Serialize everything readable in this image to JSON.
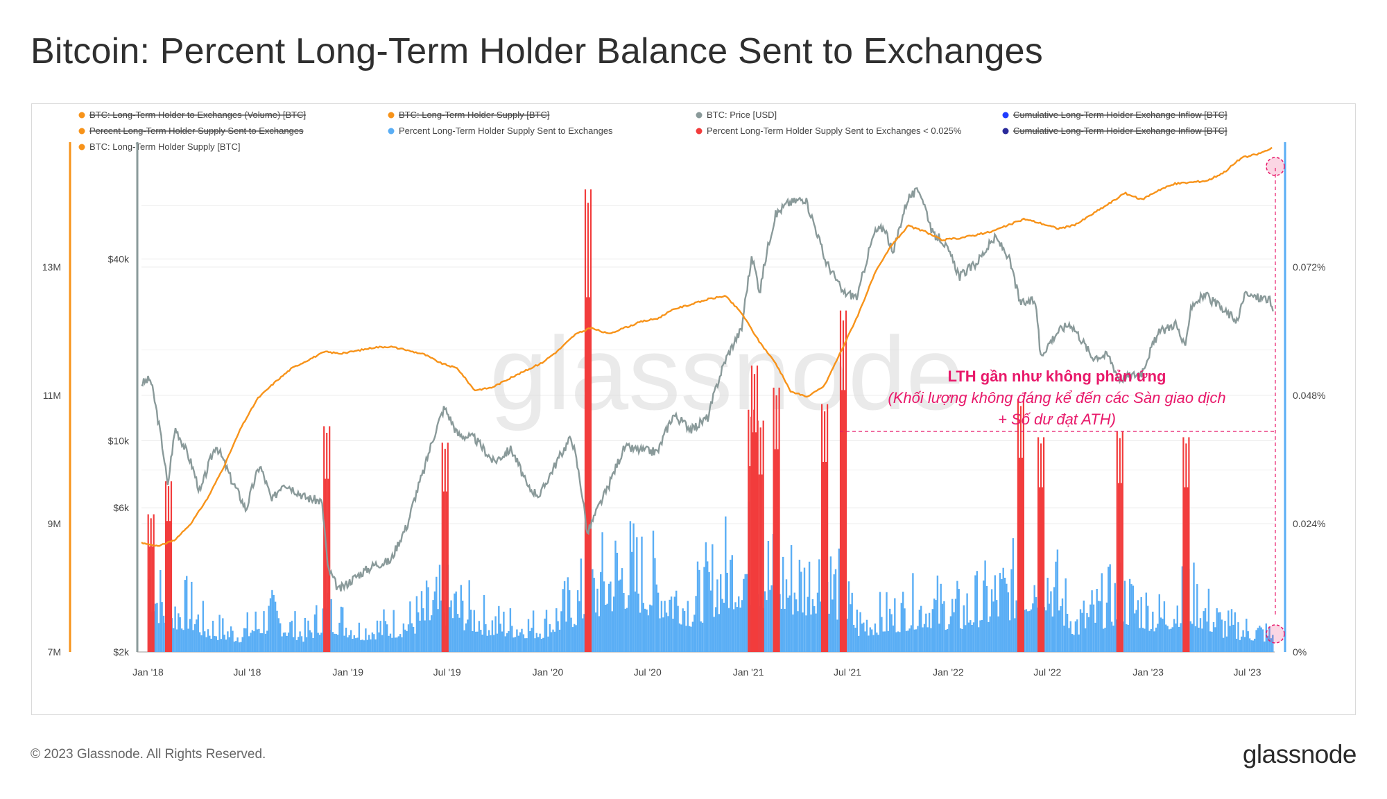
{
  "title": "Bitcoin: Percent Long-Term Holder Balance Sent to Exchanges",
  "footer": {
    "copyright": "© 2023 Glassnode. All Rights Reserved.",
    "logo": "glassnode"
  },
  "watermark": "glassnode",
  "colors": {
    "supply": "#f7931a",
    "price": "#8a9a9a",
    "pct": "#5aaef5",
    "pct_low": "#f23c3c",
    "annotation": "#e8196a",
    "cum1": "#1f3cff",
    "cum2": "#2a2a9a"
  },
  "legend": [
    {
      "label": "BTC: Long-Term Holder to Exchanges (Volume) [BTC]",
      "color": "#f7931a",
      "strike": true
    },
    {
      "label": "BTC: Long-Term Holder Supply [BTC]",
      "color": "#f7931a",
      "strike": true
    },
    {
      "label": "BTC: Price [USD]",
      "color": "#8a9a9a",
      "strike": false
    },
    {
      "label": "Cumulative Long-Term Holder Exchange Inflow [BTC]",
      "color": "#1f3cff",
      "strike": true
    },
    {
      "label": "Percent Long-Term Holder Supply Sent to Exchanges",
      "color": "#f7931a",
      "strike": true
    },
    {
      "label": "Percent Long-Term Holder Supply Sent to Exchanges",
      "color": "#5aaef5",
      "strike": false
    },
    {
      "label": "Percent Long-Term Holder Supply Sent to Exchanges < 0.025%",
      "color": "#f23c3c",
      "strike": false
    },
    {
      "label": "Cumulative Long-Term Holder Exchange Inflow [BTC]",
      "color": "#2a2a9a",
      "strike": true
    },
    {
      "label": "BTC: Long-Term Holder Supply [BTC]",
      "color": "#f7931a",
      "strike": false
    }
  ],
  "annotation": {
    "title": "LTH gần như không phản ứng",
    "line1": "(Khối lượng không đáng kể đến các Sàn giao dịch",
    "line2": "+ Số dư đạt ATH)"
  },
  "chart_data": {
    "type": "line",
    "x_ticks": [
      "Jan '18",
      "Jul '18",
      "Jan '19",
      "Jul '19",
      "Jan '20",
      "Jul '20",
      "Jan '21",
      "Jul '21",
      "Jan '22",
      "Jul '22",
      "Jan '23",
      "Jul '23"
    ],
    "x_range": [
      "2017-12-20",
      "2023-08-20"
    ],
    "y_left_supply": {
      "ticks": [
        "7M",
        "9M",
        "11M",
        "13M"
      ],
      "range": [
        7000000,
        15000000
      ]
    },
    "y_left_price": {
      "ticks": [
        "$2k",
        "$6k",
        "$10k",
        "$40k"
      ],
      "scale": "log",
      "range": [
        2000,
        100000
      ]
    },
    "y_right_pct": {
      "ticks": [
        "0%",
        "0.024%",
        "0.048%",
        "0.072%"
      ],
      "range": [
        0,
        0.096
      ]
    },
    "series": [
      {
        "name": "BTC: Long-Term Holder Supply [BTC]",
        "axis": "supply",
        "points": [
          [
            "2017-12-20",
            8700000
          ],
          [
            "2018-01-20",
            8650000
          ],
          [
            "2018-02-20",
            8750000
          ],
          [
            "2018-03-20",
            9000000
          ],
          [
            "2018-04-20",
            9400000
          ],
          [
            "2018-05-20",
            9900000
          ],
          [
            "2018-06-20",
            10500000
          ],
          [
            "2018-07-20",
            10950000
          ],
          [
            "2018-08-20",
            11200000
          ],
          [
            "2018-09-20",
            11420000
          ],
          [
            "2018-10-20",
            11550000
          ],
          [
            "2018-11-20",
            11680000
          ],
          [
            "2018-12-20",
            11650000
          ],
          [
            "2019-01-20",
            11700000
          ],
          [
            "2019-02-20",
            11750000
          ],
          [
            "2019-03-20",
            11760000
          ],
          [
            "2019-04-20",
            11700000
          ],
          [
            "2019-05-20",
            11640000
          ],
          [
            "2019-06-20",
            11500000
          ],
          [
            "2019-07-20",
            11420000
          ],
          [
            "2019-08-20",
            11080000
          ],
          [
            "2019-09-20",
            11120000
          ],
          [
            "2019-10-20",
            11250000
          ],
          [
            "2019-11-20",
            11380000
          ],
          [
            "2019-12-20",
            11500000
          ],
          [
            "2020-01-20",
            11700000
          ],
          [
            "2020-02-20",
            11950000
          ],
          [
            "2020-03-20",
            12050000
          ],
          [
            "2020-04-20",
            11960000
          ],
          [
            "2020-05-20",
            12050000
          ],
          [
            "2020-06-20",
            12150000
          ],
          [
            "2020-07-20",
            12200000
          ],
          [
            "2020-08-20",
            12350000
          ],
          [
            "2020-09-20",
            12420000
          ],
          [
            "2020-10-20",
            12500000
          ],
          [
            "2020-11-20",
            12550000
          ],
          [
            "2020-12-20",
            12280000
          ],
          [
            "2021-01-20",
            11850000
          ],
          [
            "2021-02-20",
            11500000
          ],
          [
            "2021-03-20",
            11050000
          ],
          [
            "2021-04-20",
            10980000
          ],
          [
            "2021-05-20",
            11150000
          ],
          [
            "2021-06-20",
            11700000
          ],
          [
            "2021-07-20",
            12250000
          ],
          [
            "2021-08-20",
            12900000
          ],
          [
            "2021-09-20",
            13350000
          ],
          [
            "2021-10-20",
            13640000
          ],
          [
            "2021-11-20",
            13550000
          ],
          [
            "2021-12-20",
            13420000
          ],
          [
            "2022-01-20",
            13450000
          ],
          [
            "2022-02-20",
            13500000
          ],
          [
            "2022-03-20",
            13550000
          ],
          [
            "2022-04-20",
            13650000
          ],
          [
            "2022-05-20",
            13750000
          ],
          [
            "2022-06-20",
            13680000
          ],
          [
            "2022-07-20",
            13600000
          ],
          [
            "2022-08-20",
            13650000
          ],
          [
            "2022-09-20",
            13820000
          ],
          [
            "2022-10-20",
            13980000
          ],
          [
            "2022-11-20",
            14150000
          ],
          [
            "2022-12-20",
            14050000
          ],
          [
            "2023-01-20",
            14200000
          ],
          [
            "2023-02-20",
            14300000
          ],
          [
            "2023-03-20",
            14320000
          ],
          [
            "2023-04-20",
            14350000
          ],
          [
            "2023-05-20",
            14480000
          ],
          [
            "2023-06-20",
            14700000
          ],
          [
            "2023-07-20",
            14760000
          ],
          [
            "2023-08-15",
            14850000
          ]
        ]
      },
      {
        "name": "BTC: Price [USD]",
        "axis": "price",
        "points": [
          [
            "2017-12-20",
            15500
          ],
          [
            "2018-01-05",
            16000
          ],
          [
            "2018-01-20",
            11500
          ],
          [
            "2018-02-06",
            7000
          ],
          [
            "2018-02-20",
            11000
          ],
          [
            "2018-03-20",
            8500
          ],
          [
            "2018-04-06",
            6700
          ],
          [
            "2018-05-05",
            9700
          ],
          [
            "2018-06-01",
            7500
          ],
          [
            "2018-06-29",
            5900
          ],
          [
            "2018-07-24",
            8300
          ],
          [
            "2018-08-15",
            6300
          ],
          [
            "2018-09-05",
            7300
          ],
          [
            "2018-10-15",
            6500
          ],
          [
            "2018-11-14",
            6300
          ],
          [
            "2018-11-25",
            3800
          ],
          [
            "2018-12-15",
            3200
          ],
          [
            "2019-01-20",
            3600
          ],
          [
            "2019-02-20",
            3900
          ],
          [
            "2019-03-20",
            4000
          ],
          [
            "2019-04-20",
            5300
          ],
          [
            "2019-05-20",
            8000
          ],
          [
            "2019-06-26",
            12900
          ],
          [
            "2019-07-20",
            10500
          ],
          [
            "2019-08-20",
            10200
          ],
          [
            "2019-09-24",
            8500
          ],
          [
            "2019-10-26",
            9400
          ],
          [
            "2019-11-25",
            7000
          ],
          [
            "2019-12-18",
            6600
          ],
          [
            "2020-01-20",
            8700
          ],
          [
            "2020-02-13",
            10300
          ],
          [
            "2020-03-13",
            4900
          ],
          [
            "2020-04-20",
            7000
          ],
          [
            "2020-05-20",
            9500
          ],
          [
            "2020-06-20",
            9300
          ],
          [
            "2020-07-20",
            9200
          ],
          [
            "2020-08-17",
            12200
          ],
          [
            "2020-09-20",
            10900
          ],
          [
            "2020-10-20",
            12000
          ],
          [
            "2020-11-20",
            18500
          ],
          [
            "2020-12-20",
            23500
          ],
          [
            "2021-01-08",
            40500
          ],
          [
            "2021-01-22",
            31000
          ],
          [
            "2021-02-20",
            56000
          ],
          [
            "2021-03-13",
            61000
          ],
          [
            "2021-04-14",
            63500
          ],
          [
            "2021-05-20",
            40000
          ],
          [
            "2021-06-22",
            31000
          ],
          [
            "2021-07-20",
            30000
          ],
          [
            "2021-08-20",
            49000
          ],
          [
            "2021-09-07",
            51000
          ],
          [
            "2021-09-22",
            41000
          ],
          [
            "2021-10-20",
            64000
          ],
          [
            "2021-11-10",
            67500
          ],
          [
            "2021-12-04",
            48000
          ],
          [
            "2021-12-20",
            46500
          ],
          [
            "2022-01-22",
            35000
          ],
          [
            "2022-02-20",
            38500
          ],
          [
            "2022-03-28",
            47000
          ],
          [
            "2022-04-20",
            41000
          ],
          [
            "2022-05-12",
            28500
          ],
          [
            "2022-06-10",
            29000
          ],
          [
            "2022-06-18",
            19000
          ],
          [
            "2022-07-20",
            23000
          ],
          [
            "2022-08-12",
            24500
          ],
          [
            "2022-09-20",
            19000
          ],
          [
            "2022-10-20",
            19200
          ],
          [
            "2022-11-09",
            16000
          ],
          [
            "2022-12-20",
            16800
          ],
          [
            "2023-01-20",
            22700
          ],
          [
            "2023-02-20",
            24500
          ],
          [
            "2023-03-10",
            20000
          ],
          [
            "2023-03-20",
            28000
          ],
          [
            "2023-04-14",
            30400
          ],
          [
            "2023-05-20",
            26800
          ],
          [
            "2023-06-15",
            25000
          ],
          [
            "2023-06-25",
            30500
          ],
          [
            "2023-07-20",
            29800
          ],
          [
            "2023-08-10",
            29500
          ],
          [
            "2023-08-18",
            26000
          ]
        ]
      },
      {
        "name": "Percent Long-Term Holder Supply Sent to Exchanges",
        "axis": "pct",
        "points": [
          [
            "2018-01-01",
            0.024
          ],
          [
            "2018-01-15",
            0.016
          ],
          [
            "2018-02-10",
            0.011
          ],
          [
            "2018-03-15",
            0.012
          ],
          [
            "2018-04-15",
            0.007
          ],
          [
            "2018-06-15",
            0.005
          ],
          [
            "2018-08-10",
            0.01
          ],
          [
            "2018-10-15",
            0.005
          ],
          [
            "2018-11-20",
            0.011
          ],
          [
            "2019-01-20",
            0.006
          ],
          [
            "2019-04-15",
            0.008
          ],
          [
            "2019-06-25",
            0.014
          ],
          [
            "2019-09-20",
            0.008
          ],
          [
            "2019-12-20",
            0.007
          ],
          [
            "2020-03-12",
            0.016
          ],
          [
            "2020-05-15",
            0.023
          ],
          [
            "2020-07-20",
            0.018
          ],
          [
            "2020-09-20",
            0.013
          ],
          [
            "2020-11-20",
            0.022
          ],
          [
            "2021-01-10",
            0.025
          ],
          [
            "2021-02-20",
            0.02
          ],
          [
            "2021-04-15",
            0.019
          ],
          [
            "2021-05-20",
            0.022
          ],
          [
            "2021-07-20",
            0.008
          ],
          [
            "2021-09-20",
            0.01
          ],
          [
            "2021-11-20",
            0.013
          ],
          [
            "2022-01-20",
            0.011
          ],
          [
            "2022-05-10",
            0.018
          ],
          [
            "2022-06-18",
            0.024
          ],
          [
            "2022-08-20",
            0.008
          ],
          [
            "2022-11-09",
            0.015
          ],
          [
            "2023-01-20",
            0.01
          ],
          [
            "2023-03-15",
            0.015
          ],
          [
            "2023-05-20",
            0.007
          ],
          [
            "2023-08-15",
            0.005
          ]
        ]
      },
      {
        "name": "Percent Long-Term Holder Supply Sent to Exchanges < 0.025%",
        "axis": "pct",
        "points": [
          [
            "2018-01-05",
            0.025
          ],
          [
            "2018-02-06",
            0.031
          ],
          [
            "2018-11-22",
            0.041
          ],
          [
            "2019-06-26",
            0.038
          ],
          [
            "2020-03-13",
            0.084
          ],
          [
            "2021-01-05",
            0.044
          ],
          [
            "2021-01-11",
            0.052
          ],
          [
            "2021-01-22",
            0.042
          ],
          [
            "2021-02-20",
            0.048
          ],
          [
            "2021-05-19",
            0.045
          ],
          [
            "2021-06-22",
            0.062
          ],
          [
            "2022-05-12",
            0.046
          ],
          [
            "2022-06-18",
            0.039
          ],
          [
            "2022-11-09",
            0.04
          ],
          [
            "2023-03-10",
            0.039
          ]
        ]
      }
    ]
  }
}
